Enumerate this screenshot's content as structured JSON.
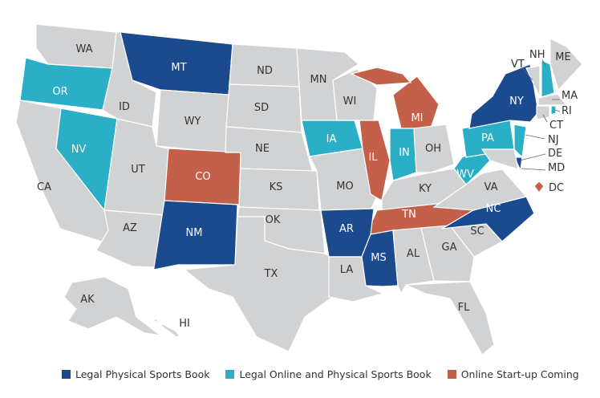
{
  "colors": {
    "physical": "#1b4a8f",
    "online_physical": "#2aafc6",
    "startup": "#c4604a",
    "none": "#d1d2d4"
  },
  "legend": [
    {
      "key": "physical",
      "label": "Legal Physical Sports Book"
    },
    {
      "key": "online_physical",
      "label": "Legal Online and Physical Sports Book"
    },
    {
      "key": "startup",
      "label": "Online Start-up Coming"
    }
  ],
  "states": [
    {
      "abbr": "WA",
      "status": "none"
    },
    {
      "abbr": "OR",
      "status": "online_physical"
    },
    {
      "abbr": "CA",
      "status": "none"
    },
    {
      "abbr": "NV",
      "status": "online_physical"
    },
    {
      "abbr": "ID",
      "status": "none"
    },
    {
      "abbr": "MT",
      "status": "physical"
    },
    {
      "abbr": "WY",
      "status": "none"
    },
    {
      "abbr": "UT",
      "status": "none"
    },
    {
      "abbr": "AZ",
      "status": "none"
    },
    {
      "abbr": "CO",
      "status": "startup"
    },
    {
      "abbr": "NM",
      "status": "physical"
    },
    {
      "abbr": "ND",
      "status": "none"
    },
    {
      "abbr": "SD",
      "status": "none"
    },
    {
      "abbr": "NE",
      "status": "none"
    },
    {
      "abbr": "KS",
      "status": "none"
    },
    {
      "abbr": "OK",
      "status": "none"
    },
    {
      "abbr": "TX",
      "status": "none"
    },
    {
      "abbr": "MN",
      "status": "none"
    },
    {
      "abbr": "IA",
      "status": "online_physical"
    },
    {
      "abbr": "MO",
      "status": "none"
    },
    {
      "abbr": "WI",
      "status": "none"
    },
    {
      "abbr": "IL",
      "status": "startup"
    },
    {
      "abbr": "MI",
      "status": "startup"
    },
    {
      "abbr": "IN",
      "status": "online_physical"
    },
    {
      "abbr": "OH",
      "status": "none"
    },
    {
      "abbr": "KY",
      "status": "none"
    },
    {
      "abbr": "TN",
      "status": "startup"
    },
    {
      "abbr": "AR",
      "status": "physical"
    },
    {
      "abbr": "LA",
      "status": "none"
    },
    {
      "abbr": "MS",
      "status": "physical"
    },
    {
      "abbr": "AL",
      "status": "none"
    },
    {
      "abbr": "GA",
      "status": "none"
    },
    {
      "abbr": "FL",
      "status": "none"
    },
    {
      "abbr": "SC",
      "status": "none"
    },
    {
      "abbr": "NC",
      "status": "physical"
    },
    {
      "abbr": "VA",
      "status": "none"
    },
    {
      "abbr": "WV",
      "status": "online_physical"
    },
    {
      "abbr": "PA",
      "status": "online_physical"
    },
    {
      "abbr": "NY",
      "status": "physical"
    },
    {
      "abbr": "NJ",
      "status": "online_physical"
    },
    {
      "abbr": "DE",
      "status": "physical"
    },
    {
      "abbr": "MD",
      "status": "none"
    },
    {
      "abbr": "VT",
      "status": "none"
    },
    {
      "abbr": "NH",
      "status": "online_physical"
    },
    {
      "abbr": "ME",
      "status": "none"
    },
    {
      "abbr": "MA",
      "status": "none"
    },
    {
      "abbr": "CT",
      "status": "none"
    },
    {
      "abbr": "RI",
      "status": "online_physical"
    },
    {
      "abbr": "DC",
      "status": "startup"
    },
    {
      "abbr": "AK",
      "status": "none"
    },
    {
      "abbr": "HI",
      "status": "none"
    }
  ]
}
